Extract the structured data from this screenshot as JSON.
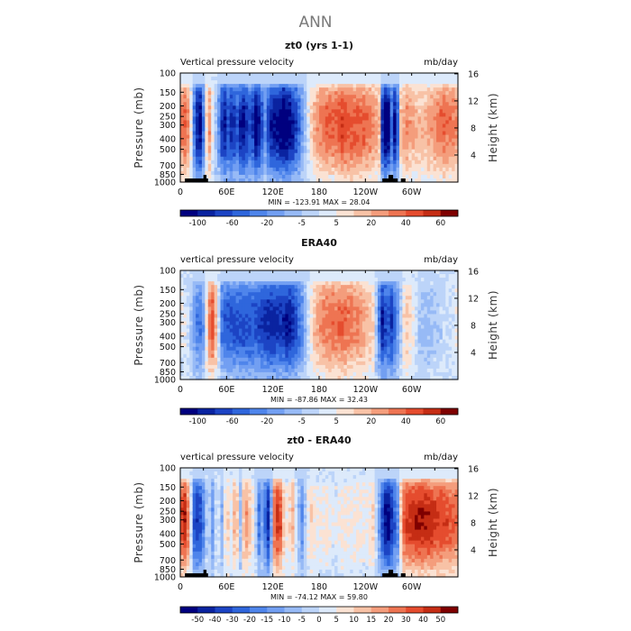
{
  "page_title": "ANN",
  "chart_data": [
    {
      "type": "heatmap",
      "panel_title": "zt0 (yrs 1-1)",
      "left_label": "Vertical pressure velocity",
      "units": "mb/day",
      "ylabel": "Pressure (mb)",
      "ylabel_right": "Height (km)",
      "x_ticks": [
        "0",
        "60E",
        "120E",
        "180",
        "120W",
        "60W"
      ],
      "x_tick_values": [
        0,
        60,
        120,
        180,
        240,
        300
      ],
      "xlim": [
        0,
        360
      ],
      "y_ticks": [
        "100",
        "150",
        "200",
        "250",
        "300",
        "400",
        "500",
        "700",
        "850",
        "1000"
      ],
      "y_tick_values": [
        100,
        150,
        200,
        250,
        300,
        400,
        500,
        700,
        850,
        1000
      ],
      "ylim": [
        1000,
        100
      ],
      "height_ticks": [
        "4",
        "8",
        "12",
        "16"
      ],
      "height_tick_values": [
        4,
        8,
        12,
        16
      ],
      "stats": "MIN = -123.91   MAX =  28.04",
      "colorbar_labels": [
        "-100",
        "-60",
        "-20",
        "-5",
        "5",
        "20",
        "40",
        "60"
      ],
      "colorbar_colors": [
        "#00007f",
        "#0a23a0",
        "#1c44c4",
        "#2f66dc",
        "#4f85eb",
        "#729ff2",
        "#97baf6",
        "#bcd4f9",
        "#ddeafb",
        "#fbe2d3",
        "#f8c2a6",
        "#f49d7c",
        "#ee7452",
        "#e54c2e",
        "#c52d14",
        "#7f0000"
      ],
      "profile": [
        [
          0,
          0.45
        ],
        [
          8,
          0.6
        ],
        [
          14,
          0.1
        ],
        [
          20,
          -0.7
        ],
        [
          26,
          -0.85
        ],
        [
          32,
          -0.2
        ],
        [
          36,
          0.55
        ],
        [
          42,
          0.1
        ],
        [
          50,
          -0.35
        ],
        [
          56,
          -0.85
        ],
        [
          62,
          -0.6
        ],
        [
          68,
          -0.75
        ],
        [
          74,
          -0.55
        ],
        [
          80,
          -0.85
        ],
        [
          86,
          -0.7
        ],
        [
          92,
          -0.55
        ],
        [
          98,
          -0.9
        ],
        [
          104,
          -0.7
        ],
        [
          110,
          -0.35
        ],
        [
          116,
          -0.75
        ],
        [
          122,
          -0.8
        ],
        [
          128,
          -0.85
        ],
        [
          134,
          -0.95
        ],
        [
          140,
          -0.9
        ],
        [
          146,
          -0.75
        ],
        [
          152,
          -0.6
        ],
        [
          158,
          -0.3
        ],
        [
          166,
          0.05
        ],
        [
          172,
          0.3
        ],
        [
          180,
          0.45
        ],
        [
          190,
          0.55
        ],
        [
          200,
          0.55
        ],
        [
          210,
          0.65
        ],
        [
          220,
          0.6
        ],
        [
          230,
          0.6
        ],
        [
          240,
          0.55
        ],
        [
          250,
          0.45
        ],
        [
          258,
          0.3
        ],
        [
          262,
          -0.7
        ],
        [
          266,
          -0.95
        ],
        [
          270,
          -0.85
        ],
        [
          274,
          -0.5
        ],
        [
          278,
          -0.8
        ],
        [
          282,
          -0.5
        ],
        [
          286,
          0.3
        ],
        [
          294,
          0.45
        ],
        [
          300,
          0.35
        ],
        [
          310,
          0.3
        ],
        [
          320,
          0.35
        ],
        [
          330,
          0.45
        ],
        [
          340,
          0.55
        ],
        [
          350,
          0.5
        ],
        [
          360,
          0.45
        ]
      ]
    },
    {
      "type": "heatmap",
      "panel_title": "ERA40",
      "left_label": "vertical pressure velocity",
      "units": "mb/day",
      "ylabel": "Pressure (mb)",
      "ylabel_right": "Height (km)",
      "x_ticks": [
        "0",
        "60E",
        "120E",
        "180",
        "120W",
        "60W"
      ],
      "x_tick_values": [
        0,
        60,
        120,
        180,
        240,
        300
      ],
      "xlim": [
        0,
        360
      ],
      "y_ticks": [
        "100",
        "150",
        "200",
        "250",
        "300",
        "400",
        "500",
        "700",
        "850",
        "1000"
      ],
      "y_tick_values": [
        100,
        150,
        200,
        250,
        300,
        400,
        500,
        700,
        850,
        1000
      ],
      "ylim": [
        1000,
        100
      ],
      "height_ticks": [
        "4",
        "8",
        "12",
        "16"
      ],
      "height_tick_values": [
        4,
        8,
        12,
        16
      ],
      "stats": "MIN = -87.86   MAX =  32.43",
      "colorbar_labels": [
        "-100",
        "-60",
        "-20",
        "-5",
        "5",
        "20",
        "40",
        "60"
      ],
      "colorbar_colors": [
        "#00007f",
        "#0a23a0",
        "#1c44c4",
        "#2f66dc",
        "#4f85eb",
        "#729ff2",
        "#97baf6",
        "#bcd4f9",
        "#ddeafb",
        "#fbe2d3",
        "#f8c2a6",
        "#f49d7c",
        "#ee7452",
        "#e54c2e",
        "#c52d14",
        "#7f0000"
      ],
      "profile": [
        [
          0,
          0.1
        ],
        [
          8,
          0.05
        ],
        [
          14,
          -0.15
        ],
        [
          20,
          -0.35
        ],
        [
          26,
          -0.45
        ],
        [
          32,
          -0.2
        ],
        [
          36,
          0.45
        ],
        [
          42,
          0.6
        ],
        [
          48,
          0.2
        ],
        [
          54,
          -0.45
        ],
        [
          60,
          -0.55
        ],
        [
          68,
          -0.6
        ],
        [
          76,
          -0.55
        ],
        [
          84,
          -0.6
        ],
        [
          92,
          -0.55
        ],
        [
          100,
          -0.6
        ],
        [
          108,
          -0.65
        ],
        [
          116,
          -0.75
        ],
        [
          124,
          -0.7
        ],
        [
          132,
          -0.7
        ],
        [
          140,
          -0.8
        ],
        [
          148,
          -0.65
        ],
        [
          156,
          -0.45
        ],
        [
          162,
          -0.2
        ],
        [
          168,
          0.1
        ],
        [
          176,
          0.35
        ],
        [
          184,
          0.45
        ],
        [
          192,
          0.5
        ],
        [
          200,
          0.5
        ],
        [
          210,
          0.55
        ],
        [
          220,
          0.5
        ],
        [
          230,
          0.45
        ],
        [
          240,
          0.35
        ],
        [
          250,
          0.2
        ],
        [
          256,
          -0.3
        ],
        [
          262,
          -0.75
        ],
        [
          268,
          -0.55
        ],
        [
          274,
          -0.65
        ],
        [
          280,
          -0.4
        ],
        [
          286,
          -0.1
        ],
        [
          292,
          0.3
        ],
        [
          300,
          0.15
        ],
        [
          310,
          -0.1
        ],
        [
          320,
          -0.15
        ],
        [
          330,
          -0.1
        ],
        [
          340,
          -0.05
        ],
        [
          350,
          0.0
        ],
        [
          360,
          0.1
        ]
      ]
    },
    {
      "type": "heatmap",
      "panel_title": "zt0 - ERA40",
      "left_label": "vertical pressure velocity",
      "units": "mb/day",
      "ylabel": "Pressure (mb)",
      "ylabel_right": "Height (km)",
      "x_ticks": [
        "0",
        "60E",
        "120E",
        "180",
        "120W",
        "60W"
      ],
      "x_tick_values": [
        0,
        60,
        120,
        180,
        240,
        300
      ],
      "xlim": [
        0,
        360
      ],
      "y_ticks": [
        "100",
        "150",
        "200",
        "250",
        "300",
        "400",
        "500",
        "700",
        "850",
        "1000"
      ],
      "y_tick_values": [
        100,
        150,
        200,
        250,
        300,
        400,
        500,
        700,
        850,
        1000
      ],
      "ylim": [
        1000,
        100
      ],
      "height_ticks": [
        "4",
        "8",
        "12",
        "16"
      ],
      "height_tick_values": [
        4,
        8,
        12,
        16
      ],
      "stats": "MIN = -74.12   MAX =  59.80",
      "colorbar_labels": [
        "-50",
        "-40",
        "-30",
        "-20",
        "-15",
        "-10",
        "-5",
        "0",
        "5",
        "10",
        "15",
        "20",
        "30",
        "40",
        "50"
      ],
      "colorbar_colors": [
        "#00007f",
        "#0a23a0",
        "#1c44c4",
        "#2f66dc",
        "#4f85eb",
        "#729ff2",
        "#97baf6",
        "#bcd4f9",
        "#ddeafb",
        "#fbe2d3",
        "#f8c2a6",
        "#f49d7c",
        "#ee7452",
        "#e54c2e",
        "#c52d14",
        "#7f0000"
      ],
      "profile": [
        [
          0,
          0.6
        ],
        [
          6,
          0.75
        ],
        [
          12,
          0.35
        ],
        [
          18,
          -0.55
        ],
        [
          24,
          -0.7
        ],
        [
          30,
          -0.4
        ],
        [
          36,
          0.05
        ],
        [
          42,
          -0.3
        ],
        [
          48,
          0.1
        ],
        [
          54,
          -0.2
        ],
        [
          60,
          0.3
        ],
        [
          66,
          0.1
        ],
        [
          72,
          0.45
        ],
        [
          78,
          -0.15
        ],
        [
          84,
          0.5
        ],
        [
          90,
          0.25
        ],
        [
          96,
          0.1
        ],
        [
          102,
          -0.45
        ],
        [
          108,
          -0.2
        ],
        [
          112,
          -0.75
        ],
        [
          116,
          -0.65
        ],
        [
          122,
          0.55
        ],
        [
          128,
          0.8
        ],
        [
          134,
          0.25
        ],
        [
          140,
          0.1
        ],
        [
          146,
          0.35
        ],
        [
          152,
          -0.1
        ],
        [
          158,
          -0.35
        ],
        [
          164,
          0.05
        ],
        [
          170,
          0.2
        ],
        [
          180,
          0.1
        ],
        [
          190,
          0.15
        ],
        [
          200,
          0.05
        ],
        [
          210,
          0.15
        ],
        [
          220,
          0.1
        ],
        [
          230,
          0.15
        ],
        [
          240,
          0.1
        ],
        [
          250,
          0.2
        ],
        [
          258,
          -0.3
        ],
        [
          264,
          -0.75
        ],
        [
          270,
          -0.85
        ],
        [
          276,
          -0.6
        ],
        [
          282,
          -0.35
        ],
        [
          288,
          0.55
        ],
        [
          296,
          0.7
        ],
        [
          304,
          0.75
        ],
        [
          312,
          0.8
        ],
        [
          320,
          0.75
        ],
        [
          330,
          0.7
        ],
        [
          340,
          0.65
        ],
        [
          350,
          0.6
        ],
        [
          360,
          0.55
        ]
      ]
    }
  ]
}
